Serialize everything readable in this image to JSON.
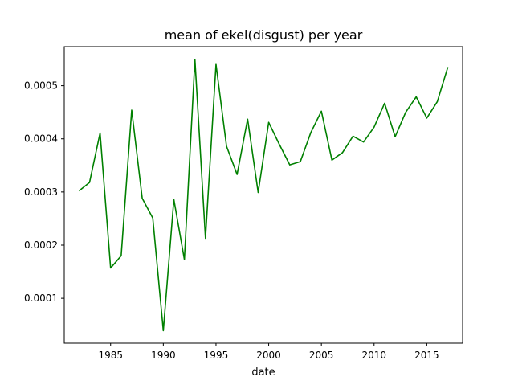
{
  "chart_data": {
    "type": "line",
    "title": "mean of ekel(disgust) per year",
    "xlabel": "date",
    "ylabel": "",
    "grid": false,
    "legend": "none",
    "line_color": "#008000",
    "xlim": [
      1980.6,
      2018.4
    ],
    "ylim": [
      1.55e-05,
      0.0005735
    ],
    "x_ticks": [
      1985,
      1990,
      1995,
      2000,
      2005,
      2010,
      2015
    ],
    "x_tick_labels": [
      "1985",
      "1990",
      "1995",
      "2000",
      "2005",
      "2010",
      "2015"
    ],
    "y_ticks": [
      0.0001,
      0.0002,
      0.0003,
      0.0004,
      0.0005
    ],
    "y_tick_labels": [
      "0.0001",
      "0.0002",
      "0.0003",
      "0.0004",
      "0.0005"
    ],
    "x": [
      1982,
      1983,
      1984,
      1985,
      1986,
      1987,
      1988,
      1989,
      1990,
      1991,
      1992,
      1993,
      1994,
      1995,
      1996,
      1997,
      1998,
      1999,
      2000,
      2001,
      2002,
      2003,
      2004,
      2005,
      2006,
      2007,
      2008,
      2009,
      2010,
      2011,
      2012,
      2013,
      2014,
      2015,
      2016,
      2017
    ],
    "series": [
      {
        "values": [
          0.000302,
          0.000318,
          0.000411,
          0.000157,
          0.00018,
          0.000454,
          0.000288,
          0.000251,
          3.9e-05,
          0.000286,
          0.000173,
          0.000549,
          0.000213,
          0.00054,
          0.000386,
          0.000333,
          0.000437,
          0.000299,
          0.000431,
          0.00039,
          0.000351,
          0.000357,
          0.000412,
          0.000452,
          0.00036,
          0.000374,
          0.000405,
          0.000394,
          0.000422,
          0.000467,
          0.000404,
          0.00045,
          0.000479,
          0.000439,
          0.00047,
          0.000535
        ]
      }
    ]
  }
}
